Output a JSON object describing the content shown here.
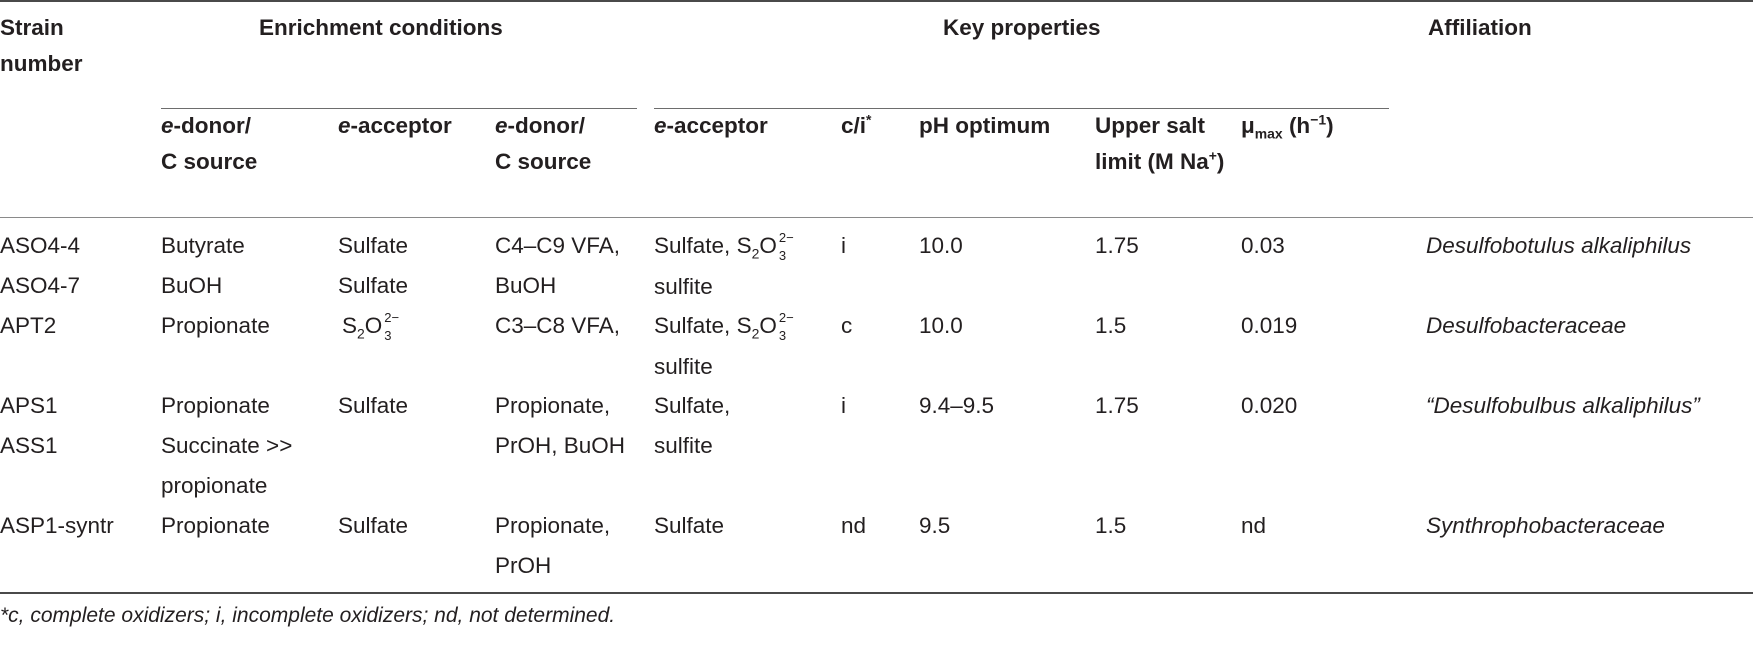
{
  "header": {
    "strain_line1": "Strain",
    "strain_line2": "number",
    "enrichment": "Enrichment conditions",
    "key_properties": "Key properties",
    "affiliation": "Affiliation",
    "sub": {
      "enr_donor_italic": "e",
      "enr_donor_rest1": "-donor/",
      "enr_donor_line2": "C source",
      "enr_acceptor_italic": "e",
      "enr_acceptor_rest": "-acceptor",
      "kp_donor_italic": "e",
      "kp_donor_rest1": "-donor/",
      "kp_donor_line2": "C source",
      "kp_acceptor_italic": "e",
      "kp_acceptor_rest": "-acceptor",
      "ci": "c/i",
      "ci_mark": "*",
      "ph": "pH optimum",
      "salt_line1": "Upper salt",
      "salt_line2": "limit (M Na",
      "salt_sup": "+",
      "salt_close": ")",
      "mu": "μ",
      "mu_sub": "max",
      "mu_unit": " (h",
      "mu_sup": "−1",
      "mu_close": ")"
    }
  },
  "thio": {
    "s": "S",
    "sub2": "2",
    "o": "O",
    "sub3": "3",
    "charge": "2−"
  },
  "rows": [
    {
      "strain": [
        "ASO4-4",
        "ASO4-7"
      ],
      "donor_enr": [
        "Butyrate",
        "BuOH"
      ],
      "acceptor_enr": [
        "Sulfate",
        "Sulfate"
      ],
      "donor_kp": [
        "C4–C9 VFA,",
        "BuOH"
      ],
      "acceptor_kp_line1": "Sulfate, ",
      "acceptor_kp_line2": "sulfite",
      "ci": "i",
      "ph": "10.0",
      "salt": "1.75",
      "mu": "0.03",
      "affiliation": "Desulfobotulus alkaliphilus"
    },
    {
      "strain": [
        "APT2"
      ],
      "donor_enr": [
        "Propionate"
      ],
      "donor_kp": [
        "C3–C8 VFA,"
      ],
      "acceptor_kp_line1": "Sulfate, ",
      "acceptor_kp_line2": "sulfite",
      "ci": "c",
      "ph": "10.0",
      "salt": "1.5",
      "mu": "0.019",
      "affiliation": "Desulfobacteraceae"
    },
    {
      "strain": [
        "APS1",
        "ASS1"
      ],
      "donor_enr": [
        "Propionate",
        "Succinate >>",
        "propionate"
      ],
      "acceptor_enr": [
        "Sulfate"
      ],
      "donor_kp": [
        "Propionate,",
        "PrOH, BuOH"
      ],
      "acceptor_kp": [
        "Sulfate,",
        "sulfite"
      ],
      "ci": "i",
      "ph": "9.4–9.5",
      "salt": "1.75",
      "mu": "0.020",
      "affiliation": "“Desulfobulbus alkaliphilus”"
    },
    {
      "strain": [
        "ASP1-syntr"
      ],
      "donor_enr": [
        "Propionate"
      ],
      "acceptor_enr": [
        "Sulfate"
      ],
      "donor_kp": [
        "Propionate,",
        "PrOH"
      ],
      "acceptor_kp": [
        "Sulfate"
      ],
      "ci": "nd",
      "ph": "9.5",
      "salt": "1.5",
      "mu": "nd",
      "affiliation": "Synthrophobacteraceae"
    }
  ],
  "footnote": "*c, complete oxidizers; i, incomplete oxidizers; nd, not determined."
}
